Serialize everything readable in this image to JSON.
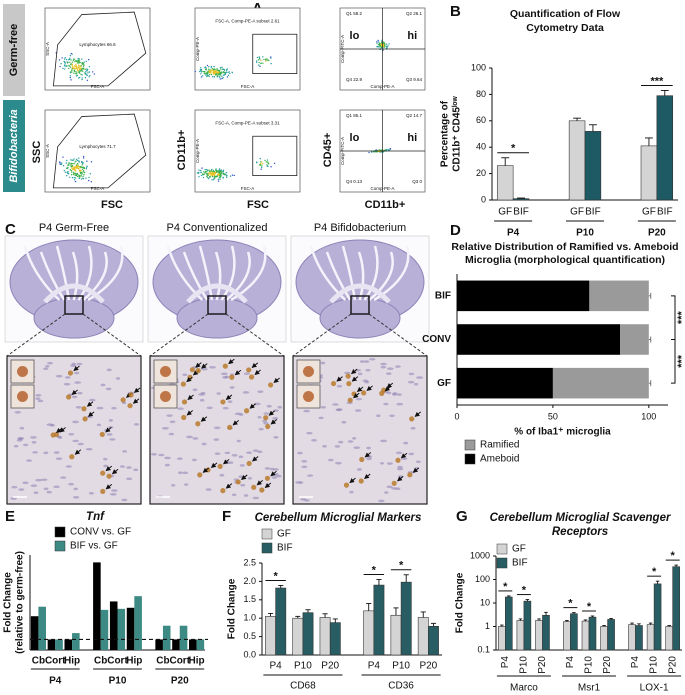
{
  "panels": {
    "A": {
      "letter": "A",
      "rows": [
        "Germ-free",
        "Bifidobacteria"
      ],
      "axes": [
        {
          "x": "FSC",
          "y": "SSC",
          "inner_x": "FSC-A",
          "inner_y": "SSC-A"
        },
        {
          "x": "FSC",
          "y": "CD11b+",
          "inner_x": "FSC-A",
          "inner_y": "Comp-PE-A"
        },
        {
          "x": "CD11b+",
          "y": "CD45+",
          "inner_x": "Comp-PE-A",
          "inner_y": "Comp-FITC-A"
        }
      ],
      "gates": [
        [
          "Lymphocytes 66.6",
          "FSC-A, Comp-PE-A subset 2.61"
        ],
        [
          "Lymphocytes 71.7",
          "FSC-A, Comp-PE-A subset 3.31"
        ]
      ],
      "quadrants": [
        [
          "Q1 58.2",
          "Q2 26.1",
          "Q4 22.9",
          "Q3 9.64"
        ],
        [
          "Q1 85.1",
          "Q2 14.7",
          "Q4 0.13",
          "Q3 0"
        ]
      ],
      "low": "lo",
      "high": "hi"
    },
    "C": {
      "letter": "C",
      "titles": [
        "P4 Germ-Free",
        "P4 Conventionalized",
        "P4 Bifidobacterium"
      ]
    }
  },
  "chart_data": [
    {
      "type": "bar",
      "panel": "B",
      "title": [
        "Quantification of Flow",
        "Cytometry Data"
      ],
      "ylabel": [
        "Percentage of",
        "CD11b⁺ CD45ˡᵒʷ"
      ],
      "categories": [
        "P4",
        "P10",
        "P20"
      ],
      "series": [
        {
          "name": "GF",
          "color": "#d4d4d4",
          "values": [
            26,
            60,
            41
          ],
          "errors": [
            6,
            2,
            6
          ]
        },
        {
          "name": "BIF",
          "color": "#1d5a64",
          "values": [
            1,
            52,
            79
          ],
          "errors": [
            0.5,
            5,
            4
          ]
        }
      ],
      "significance": [
        "*",
        null,
        "***"
      ],
      "ylim": [
        0,
        100
      ],
      "yticks": [
        0,
        20,
        40,
        60,
        80,
        100
      ]
    },
    {
      "type": "hbar",
      "panel": "D",
      "title": [
        "Relative Distribution of Ramified vs.  Ameboid",
        "Microglia (morphological quantification)"
      ],
      "xlabel": "% of Iba1⁺ microglia",
      "categories": [
        "BIF",
        "CONV",
        "GF"
      ],
      "series": [
        {
          "name": "Ameboid",
          "color": "#000000",
          "values": [
            69,
            85,
            50
          ],
          "errors": [
            1.5,
            1.5,
            1
          ]
        },
        {
          "name": "Ramified",
          "color": "#9a9a9a",
          "values": [
            31,
            15,
            50
          ],
          "errors": [
            1,
            1,
            1
          ]
        }
      ],
      "significance": [
        "***",
        "***"
      ],
      "xlim": [
        0,
        110
      ],
      "xticks": [
        0,
        50,
        100
      ]
    },
    {
      "type": "bar",
      "panel": "E",
      "title": [
        "Tnf"
      ],
      "ylabel": [
        "Fold Change",
        "(relative to germ-free)"
      ],
      "categories": [
        "Cb",
        "Cort",
        "Hip",
        "Cb",
        "Cort",
        "Hip",
        "Cb",
        "Cort",
        "Hip"
      ],
      "groups": [
        "P4",
        "P10",
        "P20"
      ],
      "series": [
        {
          "name": "CONV vs. GF",
          "color": "#000000",
          "values": [
            3.2,
            1.0,
            1.0,
            8.3,
            4.6,
            4.0,
            1.0,
            1.0,
            1.0
          ]
        },
        {
          "name": "BIF vs. GF",
          "color": "#3d8984",
          "values": [
            4.1,
            1.0,
            1.6,
            3.8,
            3.9,
            5.1,
            2.3,
            2.3,
            1.0
          ]
        }
      ],
      "refline": 1,
      "ylim": [
        0,
        9
      ]
    },
    {
      "type": "bar",
      "panel": "F",
      "title": [
        "Cerebellum Microglial Markers"
      ],
      "ylabel": [
        "Fold Change"
      ],
      "categories": [
        "P4",
        "P10",
        "P20",
        "P4",
        "P10",
        "P20"
      ],
      "groups": [
        "CD68",
        "CD36"
      ],
      "series": [
        {
          "name": "GF",
          "color": "#d4d4d4",
          "values": [
            1.05,
            1.0,
            1.02,
            1.2,
            1.08,
            1.02
          ],
          "errors": [
            0.08,
            0.05,
            0.1,
            0.2,
            0.2,
            0.15
          ]
        },
        {
          "name": "BIF",
          "color": "#285e63",
          "values": [
            1.82,
            1.15,
            0.88,
            1.9,
            1.98,
            0.78
          ],
          "errors": [
            0.07,
            0.08,
            0.1,
            0.15,
            0.2,
            0.08
          ]
        }
      ],
      "significance": [
        "*",
        null,
        null,
        "*",
        "*",
        null
      ],
      "ylim": [
        0,
        2.5
      ],
      "yticks": [
        {
          "value": 0,
          "label": "0.0"
        },
        0.5,
        {
          "value": 1,
          "label": "1.0"
        },
        1.5,
        {
          "value": 2,
          "label": "2.0"
        },
        2.5
      ]
    },
    {
      "type": "bar",
      "panel": "G",
      "title": [
        "Cerebellum Microglial Scavenger",
        "Receptors"
      ],
      "ylabel": [
        "Fold Change"
      ],
      "categories": [
        "P4",
        "P10",
        "P20",
        "P4",
        "P10",
        "P20",
        "P4",
        "P10",
        "P20"
      ],
      "groups": [
        "Marco",
        "Msr1",
        "LOX-1"
      ],
      "series": [
        {
          "name": "GF",
          "color": "#d4d4d4",
          "values": [
            1.0,
            1.8,
            1.8,
            1.6,
            1.7,
            1.0,
            1.2,
            1.2,
            1.0
          ],
          "errors": [
            0.15,
            0.3,
            0.3,
            0.2,
            0.2,
            0.1,
            0.2,
            0.2,
            0.1
          ]
        },
        {
          "name": "BIF",
          "color": "#285e63",
          "values": [
            18,
            12,
            3.0,
            3.5,
            2.5,
            2.0,
            1.1,
            65,
            350
          ],
          "errors": [
            2,
            2,
            1,
            0.4,
            0.3,
            0.2,
            0.2,
            20,
            60
          ]
        }
      ],
      "significance": [
        "*",
        "*",
        null,
        "*",
        "*",
        null,
        null,
        "*",
        "*"
      ],
      "log_y": true,
      "ylim": [
        0.1,
        1000
      ],
      "yticks": [
        0.1,
        1,
        10,
        100,
        1000
      ]
    }
  ]
}
